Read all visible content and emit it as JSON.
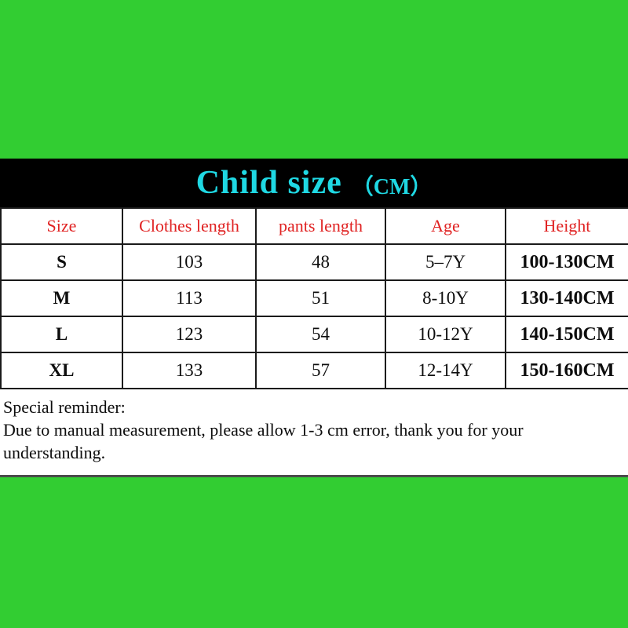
{
  "colors": {
    "background_green": "#32cd32",
    "title_bar_black": "#000000",
    "title_cyan": "#1fd8e3",
    "header_red": "#e02222",
    "panel_white": "#ffffff",
    "body_text_black": "#0d0d0d"
  },
  "header": {
    "title": "Child size",
    "unit": "（CM）"
  },
  "table": {
    "columns": [
      "Size",
      "Clothes length",
      "pants length",
      "Age",
      "Height"
    ],
    "rows": [
      {
        "cells": [
          "S",
          "103",
          "48",
          "5–7Y",
          "100-130CM"
        ]
      },
      {
        "cells": [
          "M",
          "113",
          "51",
          "8-10Y",
          "130-140CM"
        ]
      },
      {
        "cells": [
          "L",
          "123",
          "54",
          "10-12Y",
          "140-150CM"
        ]
      },
      {
        "cells": [
          "XL",
          "133",
          "57",
          "12-14Y",
          "150-160CM"
        ]
      }
    ]
  },
  "reminder": {
    "heading": "Special reminder:",
    "body": "Due to manual measurement, please allow 1-3 cm error, thank you for your understanding."
  },
  "chart_data": {
    "type": "table",
    "title": "Child size (CM)",
    "columns": [
      "Size",
      "Clothes length",
      "pants length",
      "Age",
      "Height"
    ],
    "rows": [
      [
        "S",
        103,
        48,
        "5-7Y",
        "100-130CM"
      ],
      [
        "M",
        113,
        51,
        "8-10Y",
        "130-140CM"
      ],
      [
        "L",
        123,
        54,
        "10-12Y",
        "140-150CM"
      ],
      [
        "XL",
        133,
        57,
        "12-14Y",
        "150-160CM"
      ]
    ],
    "notes": "Special reminder: Due to manual measurement, please allow 1-3 cm error, thank you for your understanding."
  }
}
